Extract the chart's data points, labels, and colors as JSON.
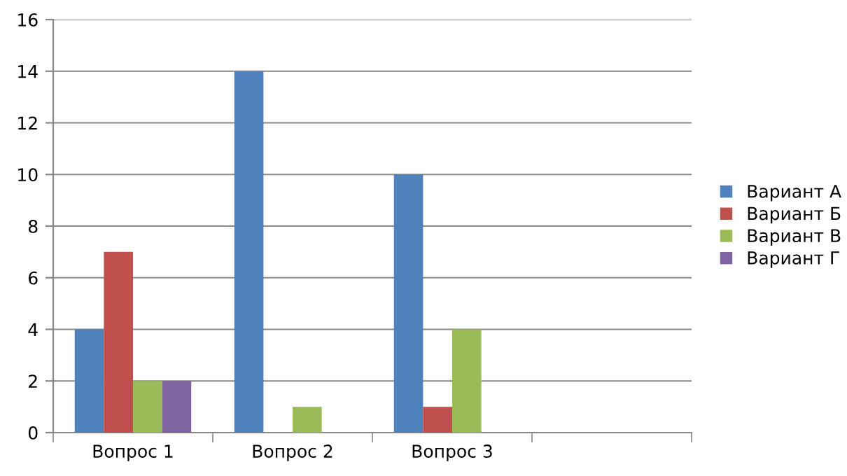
{
  "chart_data": {
    "type": "bar",
    "categories": [
      "Вопрос 1",
      "Вопрос 2",
      "Вопрос 3",
      null
    ],
    "series": [
      {
        "name": "Вариант А",
        "color": "#4f81bd",
        "values": [
          4,
          14,
          10,
          null
        ]
      },
      {
        "name": "Вариант Б",
        "color": "#c0504d",
        "values": [
          7,
          0,
          1,
          null
        ]
      },
      {
        "name": "Вариант В",
        "color": "#9bbb59",
        "values": [
          2,
          1,
          4,
          null
        ]
      },
      {
        "name": "Вариант Г",
        "color": "#8064a2",
        "values": [
          2,
          0,
          0,
          null
        ]
      }
    ],
    "ylim": [
      0,
      16
    ],
    "yticks": [
      0,
      2,
      4,
      6,
      8,
      10,
      12,
      14,
      16
    ],
    "grid": "y",
    "legend": "right"
  }
}
